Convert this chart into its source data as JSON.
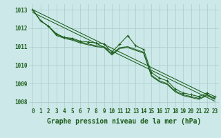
{
  "title": "Graphe pression niveau de la mer (hPa)",
  "background_color": "#cce8e8",
  "grid_color": "#aacccc",
  "line_color": "#1a5c1a",
  "x_labels": [
    "0",
    "1",
    "2",
    "3",
    "4",
    "5",
    "6",
    "7",
    "8",
    "9",
    "10",
    "11",
    "12",
    "13",
    "14",
    "15",
    "16",
    "17",
    "18",
    "19",
    "20",
    "21",
    "22",
    "23"
  ],
  "series_markers": [
    1013.0,
    1012.4,
    1012.1,
    1011.7,
    1011.5,
    1011.45,
    1011.3,
    1011.25,
    1011.2,
    1011.15,
    1010.7,
    1011.15,
    1011.6,
    1011.05,
    1010.85,
    1009.6,
    1009.3,
    1009.15,
    1008.7,
    1008.5,
    1008.4,
    1008.3,
    1008.5,
    1008.3
  ],
  "series_line1": [
    1013.0,
    1012.4,
    1012.1,
    1011.65,
    1011.5,
    1011.4,
    1011.25,
    1011.15,
    1011.05,
    1011.0,
    1010.6,
    1010.95,
    1011.0,
    1010.85,
    1010.7,
    1009.45,
    1009.15,
    1009.0,
    1008.6,
    1008.4,
    1008.3,
    1008.2,
    1008.4,
    1008.2
  ],
  "series_line2": [
    1013.0,
    1012.4,
    1012.1,
    1011.6,
    1011.45,
    1011.35,
    1011.2,
    1011.1,
    1011.0,
    1010.95,
    1010.55,
    1010.9,
    1010.95,
    1010.8,
    1010.65,
    1009.4,
    1009.1,
    1008.95,
    1008.55,
    1008.35,
    1008.25,
    1008.15,
    1008.35,
    1008.15
  ],
  "trend1": [
    1013.0,
    1008.2
  ],
  "trend2": [
    1012.85,
    1008.05
  ],
  "ylim": [
    1007.7,
    1013.3
  ],
  "yticks": [
    1008,
    1009,
    1010,
    1011,
    1012,
    1013
  ],
  "title_fontsize": 7,
  "tick_fontsize": 5.5
}
